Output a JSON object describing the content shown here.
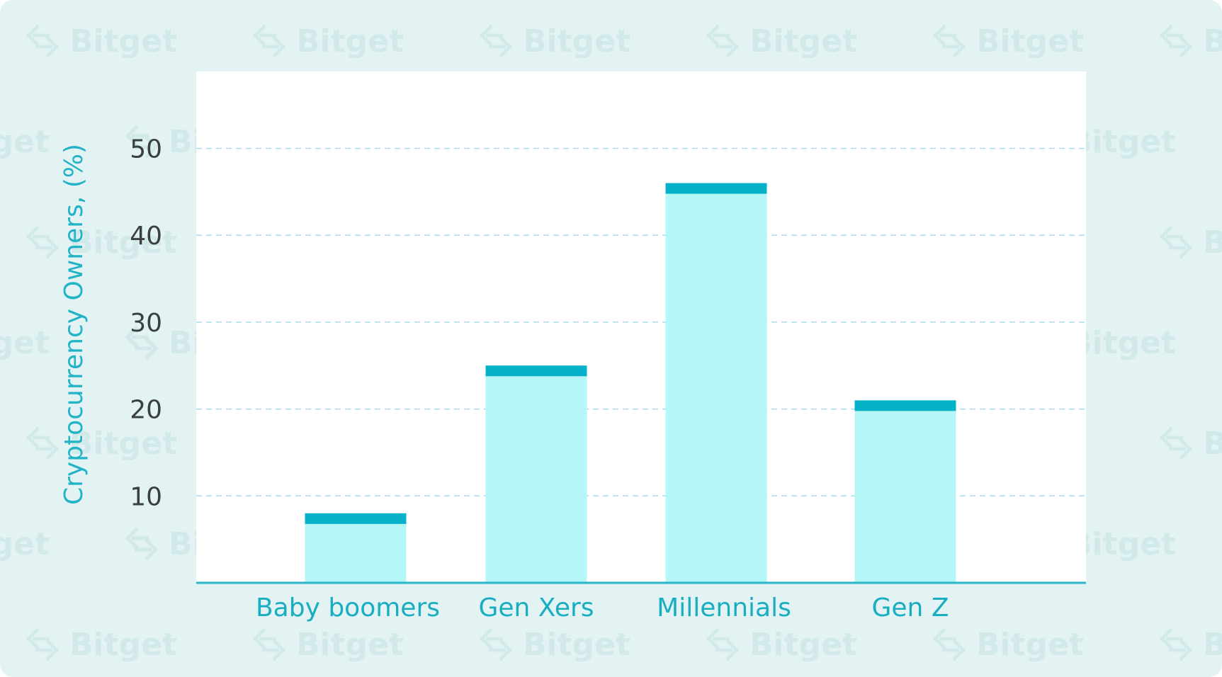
{
  "chart_data": {
    "type": "bar",
    "categories": [
      "Baby boomers",
      "Gen Xers",
      "Millennials",
      "Gen Z"
    ],
    "values": [
      8,
      25,
      46,
      21
    ],
    "title": "",
    "xlabel": "",
    "ylabel": "Cryptocurrency Owners, (%)",
    "ylim": [
      0,
      55
    ],
    "yticks": [
      10,
      20,
      30,
      40,
      50
    ],
    "grid": true,
    "legend": "none"
  },
  "watermark": {
    "text": "Bitget",
    "icon": "bitget-arrows-icon"
  },
  "colors": {
    "background": "#e3f3f3",
    "plot_area": "#ffffff",
    "bar_fill": "#b5f6f7",
    "bar_cap": "#05b1c8",
    "axis": "#29b6cb",
    "label": "#19adc1"
  }
}
